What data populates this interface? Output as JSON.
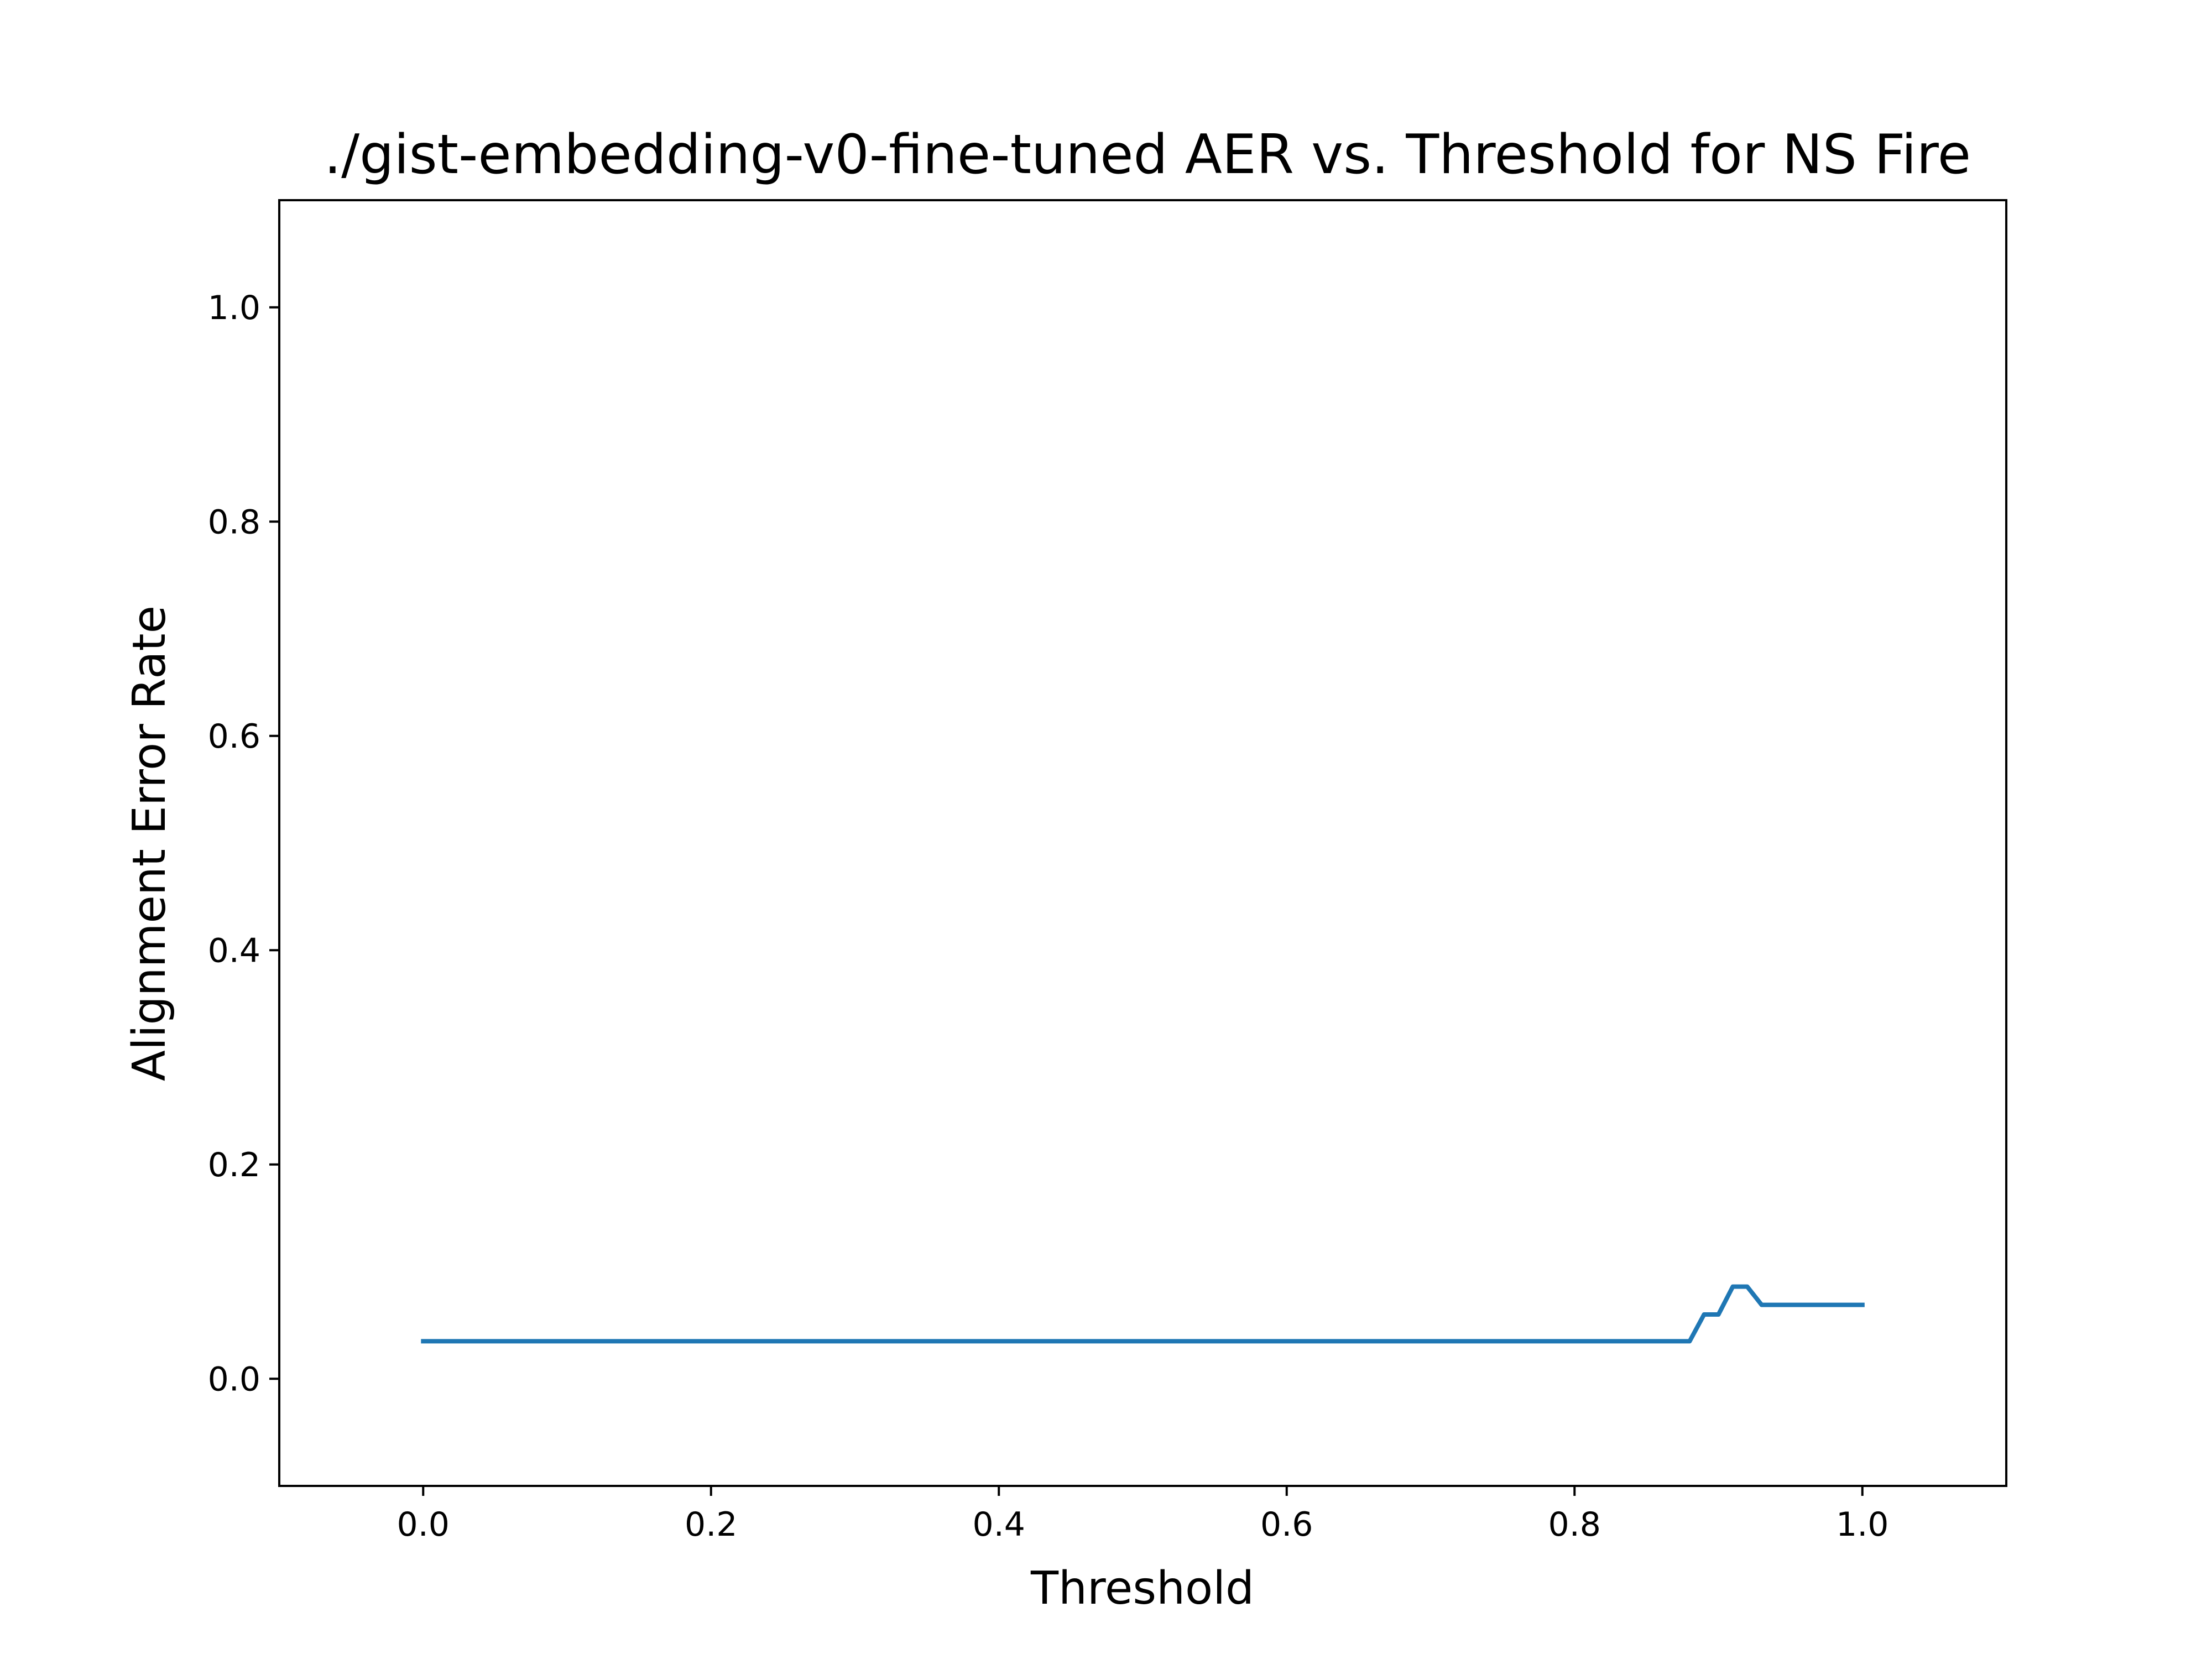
{
  "chart_data": {
    "type": "line",
    "title": "./gist-embedding-v0-fine-tuned AER vs. Threshold for NS Fire",
    "xlabel": "Threshold",
    "ylabel": "Alignment Error Rate",
    "xlim": [
      -0.1,
      1.1
    ],
    "ylim": [
      -0.1,
      1.1
    ],
    "xticks": [
      0.0,
      0.2,
      0.4,
      0.6,
      0.8,
      1.0
    ],
    "yticks": [
      0.0,
      0.2,
      0.4,
      0.6,
      0.8,
      1.0
    ],
    "xtick_labels": [
      "0.0",
      "0.2",
      "0.4",
      "0.6",
      "0.8",
      "1.0"
    ],
    "ytick_labels": [
      "0.0",
      "0.2",
      "0.4",
      "0.6",
      "0.8",
      "1.0"
    ],
    "grid": false,
    "series": [
      {
        "color": "#1f77b4",
        "x": [
          0.0,
          0.88,
          0.89,
          0.9,
          0.91,
          0.92,
          0.93,
          0.94,
          0.95,
          0.96,
          0.97,
          0.98,
          0.99,
          1.0
        ],
        "y": [
          0.035,
          0.035,
          0.06,
          0.06,
          0.086,
          0.086,
          0.069,
          0.069,
          0.069,
          0.069,
          0.069,
          0.069,
          0.069,
          0.069
        ]
      }
    ]
  }
}
